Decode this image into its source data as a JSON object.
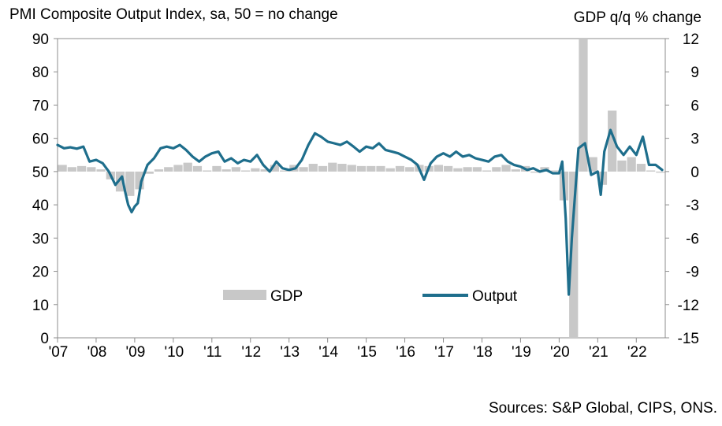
{
  "chart_data": {
    "type": "bar+line",
    "left_axis_title": "PMI Composite  Output Index, sa, 50 = no change",
    "right_axis_title": "GDP q/q % change",
    "source": "Sources: S&P Global, CIPS, ONS.",
    "x_tick_labels": [
      "'07",
      "'08",
      "'09",
      "'10",
      "'11",
      "'12",
      "'13",
      "'14",
      "'15",
      "'16",
      "'17",
      "'18",
      "'19",
      "'20",
      "'21",
      "'22"
    ],
    "x_range": [
      2007.0,
      2022.75
    ],
    "left_ylim": [
      0,
      90
    ],
    "left_ticks": [
      "0",
      "10",
      "20",
      "30",
      "40",
      "50",
      "60",
      "70",
      "80",
      "90"
    ],
    "right_ylim": [
      -15,
      12
    ],
    "right_ticks": [
      "-15",
      "-12",
      "-9",
      "-6",
      "-3",
      "0",
      "3",
      "6",
      "9",
      "12"
    ],
    "legend": [
      {
        "name": "GDP",
        "kind": "bar",
        "color": "#c8c8c8"
      },
      {
        "name": "Output",
        "kind": "line",
        "color": "#1e6e8c"
      }
    ],
    "series": [
      {
        "name": "GDP",
        "type": "bar",
        "axis": "right",
        "color": "#c8c8c8",
        "x": [
          2007.0,
          2007.25,
          2007.5,
          2007.75,
          2008.0,
          2008.25,
          2008.5,
          2008.75,
          2009.0,
          2009.25,
          2009.5,
          2009.75,
          2010.0,
          2010.25,
          2010.5,
          2010.75,
          2011.0,
          2011.25,
          2011.5,
          2011.75,
          2012.0,
          2012.25,
          2012.5,
          2012.75,
          2013.0,
          2013.25,
          2013.5,
          2013.75,
          2014.0,
          2014.25,
          2014.5,
          2014.75,
          2015.0,
          2015.25,
          2015.5,
          2015.75,
          2016.0,
          2016.25,
          2016.5,
          2016.75,
          2017.0,
          2017.25,
          2017.5,
          2017.75,
          2018.0,
          2018.25,
          2018.5,
          2018.75,
          2019.0,
          2019.25,
          2019.5,
          2019.75,
          2020.0,
          2020.25,
          2020.5,
          2020.75,
          2021.0,
          2021.25,
          2021.5,
          2021.75,
          2022.0,
          2022.25,
          2022.5
        ],
        "values": [
          0.6,
          0.4,
          0.5,
          0.4,
          0.2,
          -0.7,
          -1.8,
          -2.2,
          -1.6,
          -0.2,
          0.2,
          0.4,
          0.6,
          0.8,
          0.5,
          0.1,
          0.5,
          0.2,
          0.4,
          0.1,
          0.3,
          0.2,
          0.6,
          0.1,
          0.6,
          0.4,
          0.7,
          0.5,
          0.8,
          0.7,
          0.6,
          0.5,
          0.5,
          0.5,
          0.3,
          0.5,
          0.4,
          0.6,
          0.5,
          0.6,
          0.5,
          0.3,
          0.4,
          0.4,
          0.1,
          0.4,
          0.6,
          0.2,
          0.5,
          -0.1,
          0.4,
          0.1,
          -2.6,
          -19.4,
          16.9,
          1.3,
          -1.2,
          5.5,
          1.0,
          1.3,
          0.7,
          0.1,
          -0.1
        ]
      },
      {
        "name": "Output",
        "type": "line",
        "axis": "left",
        "color": "#1e6e8c",
        "x": [
          2007.0,
          2007.17,
          2007.33,
          2007.5,
          2007.67,
          2007.83,
          2008.0,
          2008.17,
          2008.33,
          2008.5,
          2008.67,
          2008.75,
          2008.83,
          2008.92,
          2009.0,
          2009.08,
          2009.17,
          2009.33,
          2009.5,
          2009.67,
          2009.83,
          2010.0,
          2010.17,
          2010.33,
          2010.5,
          2010.67,
          2010.83,
          2011.0,
          2011.17,
          2011.33,
          2011.5,
          2011.67,
          2011.83,
          2012.0,
          2012.17,
          2012.33,
          2012.5,
          2012.67,
          2012.83,
          2013.0,
          2013.17,
          2013.33,
          2013.5,
          2013.67,
          2013.83,
          2014.0,
          2014.17,
          2014.33,
          2014.5,
          2014.67,
          2014.83,
          2015.0,
          2015.17,
          2015.33,
          2015.5,
          2015.67,
          2015.83,
          2016.0,
          2016.17,
          2016.33,
          2016.5,
          2016.58,
          2016.67,
          2016.83,
          2017.0,
          2017.17,
          2017.33,
          2017.5,
          2017.67,
          2017.83,
          2018.0,
          2018.17,
          2018.33,
          2018.5,
          2018.67,
          2018.83,
          2019.0,
          2019.17,
          2019.33,
          2019.5,
          2019.67,
          2019.83,
          2020.0,
          2020.08,
          2020.17,
          2020.25,
          2020.33,
          2020.5,
          2020.67,
          2020.83,
          2021.0,
          2021.08,
          2021.17,
          2021.33,
          2021.5,
          2021.67,
          2021.83,
          2022.0,
          2022.17,
          2022.33,
          2022.5,
          2022.67
        ],
        "values": [
          58.0,
          57.0,
          57.3,
          56.9,
          57.5,
          53.0,
          53.5,
          52.5,
          50.0,
          46.0,
          48.5,
          44.0,
          40.0,
          37.8,
          39.5,
          40.5,
          47.0,
          52.0,
          54.0,
          57.0,
          57.5,
          57.0,
          58.0,
          56.5,
          54.5,
          53.0,
          54.5,
          55.5,
          56.0,
          53.0,
          54.0,
          52.5,
          53.5,
          53.0,
          55.0,
          52.0,
          50.0,
          53.0,
          51.0,
          50.5,
          51.0,
          53.5,
          58.0,
          61.5,
          60.5,
          59.0,
          58.5,
          58.0,
          59.0,
          57.5,
          56.0,
          57.5,
          57.0,
          58.5,
          56.5,
          56.0,
          55.5,
          54.5,
          53.5,
          52.0,
          47.5,
          50.0,
          52.5,
          54.5,
          55.5,
          54.5,
          56.0,
          54.5,
          55.0,
          54.0,
          53.5,
          53.0,
          54.5,
          55.0,
          53.0,
          52.0,
          51.5,
          50.5,
          51.0,
          50.0,
          50.5,
          49.5,
          49.5,
          53.0,
          36.0,
          13.0,
          30.0,
          57.0,
          58.5,
          49.0,
          50.0,
          43.0,
          56.0,
          62.5,
          57.5,
          55.0,
          57.5,
          55.0,
          60.5,
          52.0,
          52.0,
          50.5
        ]
      }
    ]
  }
}
